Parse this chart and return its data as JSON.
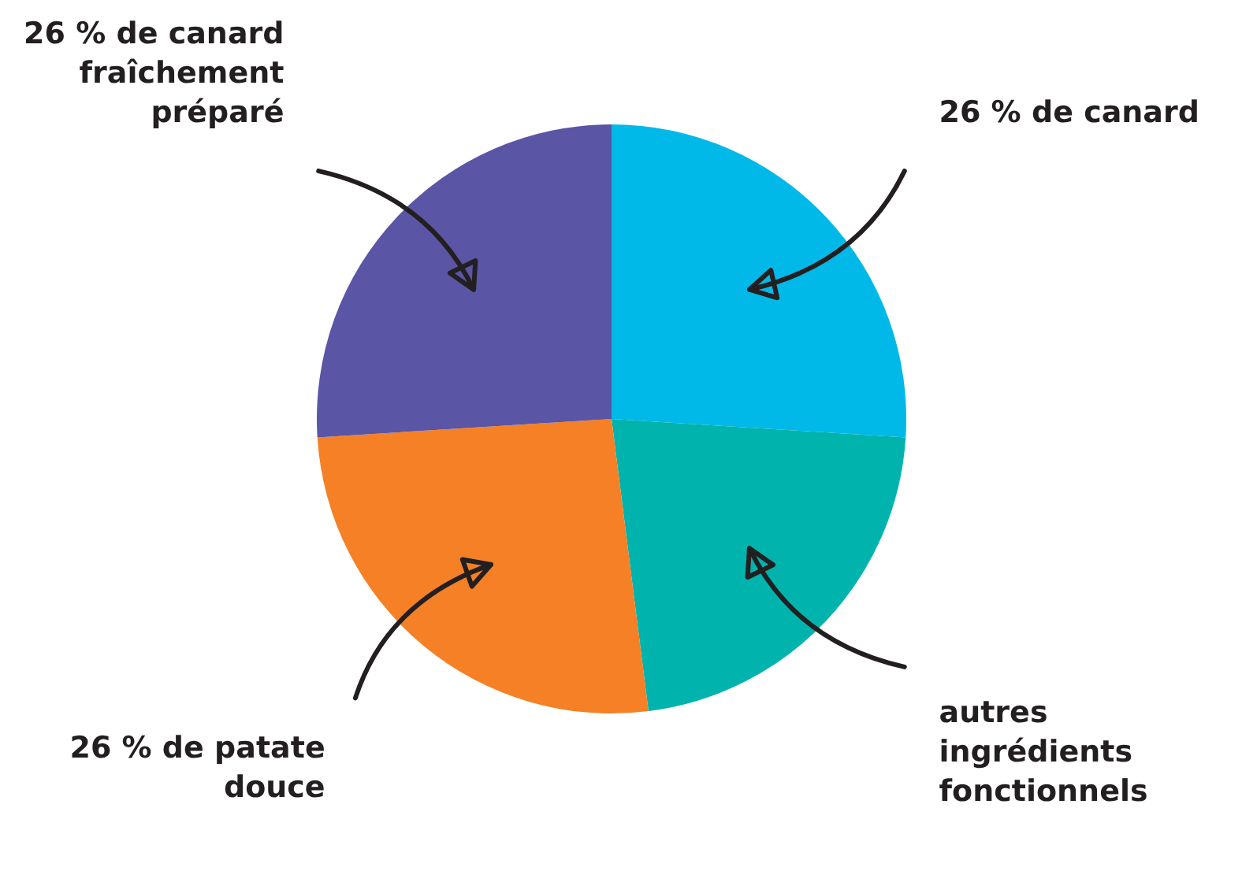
{
  "chart_data": {
    "type": "pie",
    "categories": [
      "26 % de canard",
      "autres ingrédients fonctionnels",
      "26 % de patate douce",
      "26 % de canard fraîchement préparé"
    ],
    "values": [
      26,
      22,
      26,
      26
    ],
    "colors": [
      "#00b9e8",
      "#00b3ad",
      "#f58025",
      "#5a55a5"
    ],
    "legend": false
  }
}
